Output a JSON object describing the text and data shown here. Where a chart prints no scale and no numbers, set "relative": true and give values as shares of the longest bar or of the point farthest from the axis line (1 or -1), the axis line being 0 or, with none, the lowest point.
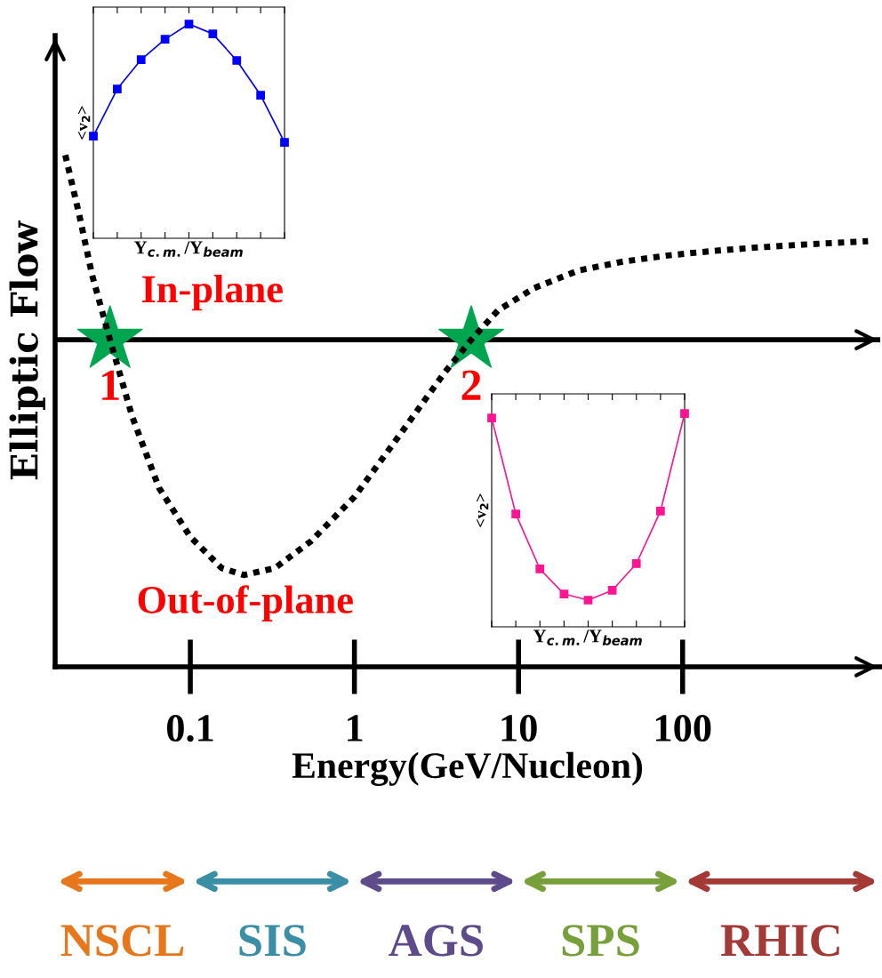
{
  "chart_data": [
    {
      "type": "line",
      "xlabel": "Energy(GeV/Nucleon)",
      "ylabel": "Elliptic Flow",
      "log": "x",
      "relative": true,
      "xlim": [
        0.015,
        1600
      ],
      "xticks": [
        0.1,
        1,
        10,
        100
      ],
      "series": [
        {
          "type": "line",
          "color": "#000000",
          "line_style": "dotted",
          "x": [
            0.0173,
            0.0209,
            0.0252,
            0.0324,
            0.0443,
            0.0645,
            0.1,
            0.155,
            0.212,
            0.328,
            0.542,
            1,
            1.89,
            3.54,
            5.15,
            7.5,
            12.4,
            23.1,
            43.2,
            80.9,
            151,
            283,
            528,
            1349
          ],
          "values": [
            0.785,
            0.54,
            0.275,
            0,
            -0.328,
            -0.63,
            -0.838,
            -0.97,
            -1,
            -0.97,
            -0.857,
            -0.668,
            -0.404,
            -0.14,
            0,
            0.125,
            0.219,
            0.294,
            0.332,
            0.358,
            0.377,
            0.392,
            0.404,
            0.419
          ]
        },
        {
          "type": "scatter",
          "color": "#00a550",
          "marker": "star",
          "x": [
            0.0324,
            5.15
          ],
          "values": [
            0,
            0
          ]
        }
      ],
      "ref_lines": [
        {
          "axis": "y",
          "value": 0,
          "color": "#000000"
        }
      ],
      "annotations": [
        "In-plane",
        "Out-of-plane",
        {
          "text": "1",
          "x": 0.0324,
          "y": 0
        },
        {
          "text": "2",
          "x": 5.15,
          "y": 0
        },
        "NSCL",
        "SIS",
        "AGS",
        "SPS",
        "RHIC"
      ]
    },
    {
      "type": "line",
      "xlabel": "Y$_{c.m.}$/Y$_{beam}$",
      "ylabel": "<v$_{2}$>",
      "relative": true,
      "tick_labels": false,
      "marker": "square",
      "categories": [
        null,
        null,
        null,
        null,
        null,
        null,
        null,
        null,
        null
      ],
      "series": [
        {
          "color": "#0000ff",
          "values": [
            0.477,
            0.697,
            0.834,
            0.929,
            1,
            0.954,
            0.83,
            0.668,
            0.448
          ]
        }
      ]
    },
    {
      "type": "line",
      "xlabel": "Y$_{c.m.}$/Y$_{beam}$",
      "ylabel": "<v$_{2}$>",
      "relative": true,
      "tick_labels": false,
      "marker": "square",
      "categories": [
        null,
        null,
        null,
        null,
        null,
        null,
        null,
        null,
        null
      ],
      "series": [
        {
          "color": "#ff1493",
          "values": [
            0.979,
            0.529,
            0.271,
            0.154,
            0.125,
            0.171,
            0.296,
            0.542,
            1
          ]
        }
      ]
    }
  ]
}
